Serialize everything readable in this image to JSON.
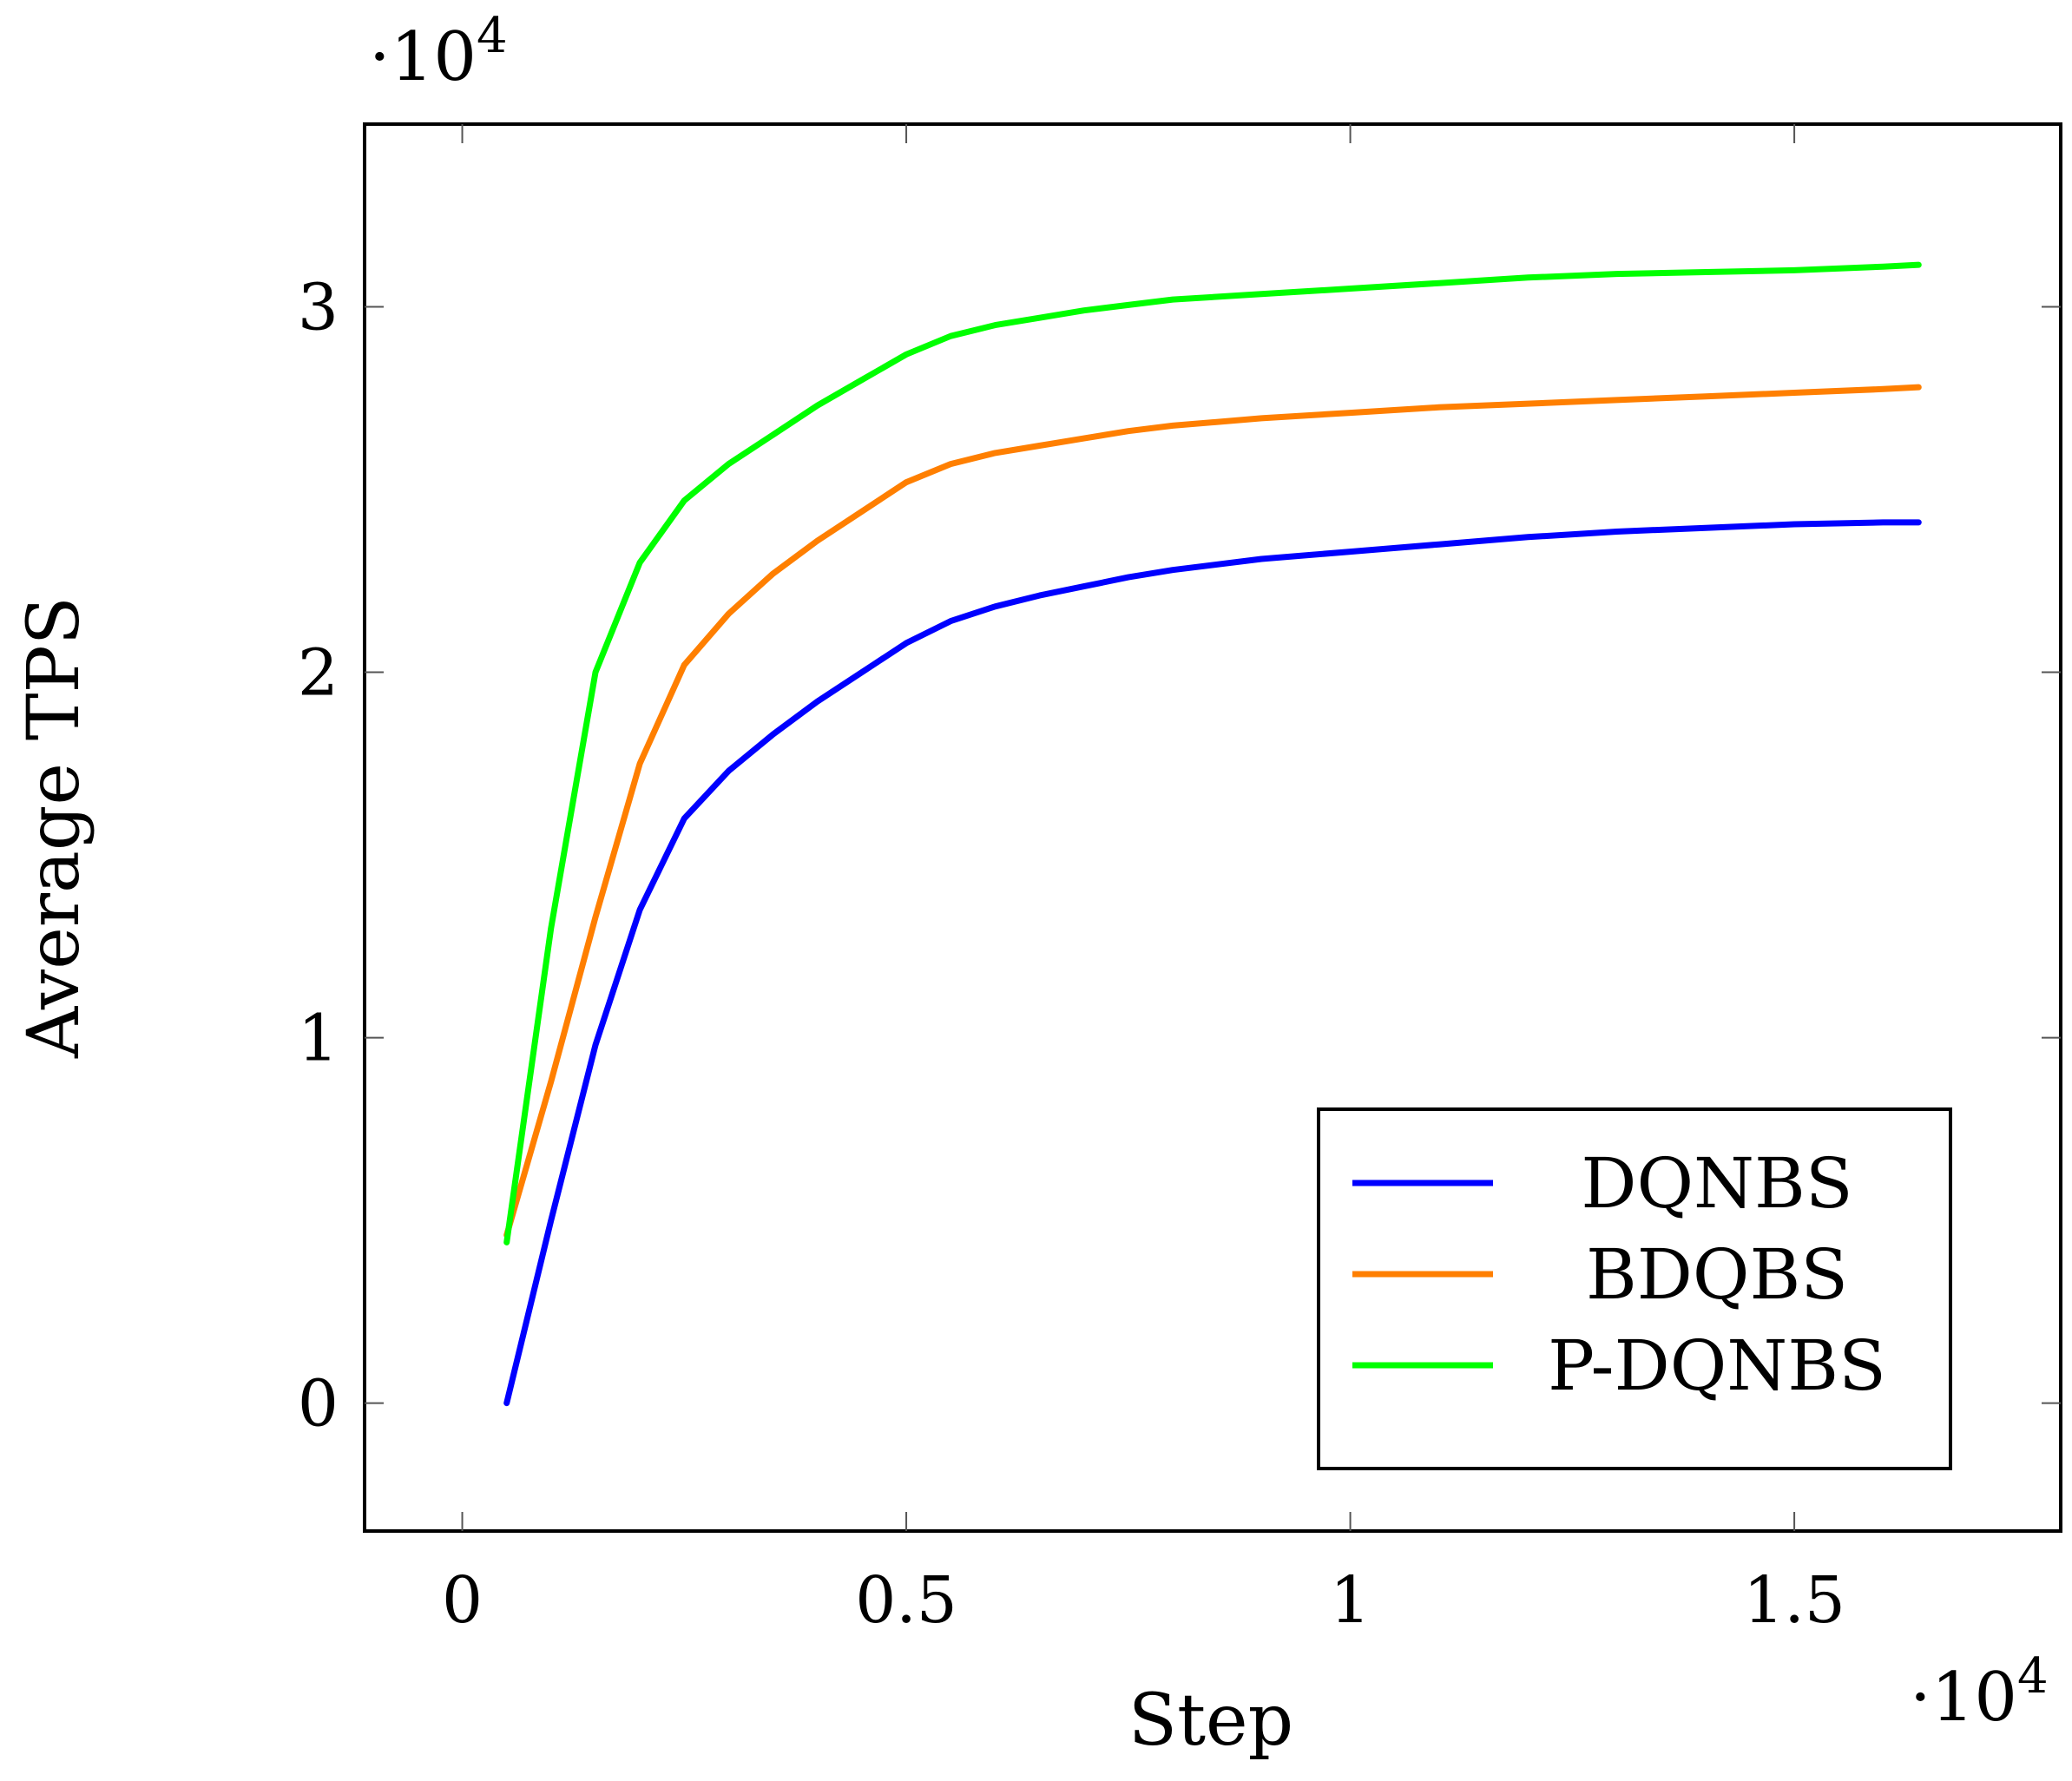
{
  "chart_data": {
    "type": "line",
    "title": "",
    "xlabel": "Step",
    "ylabel": "Average TPS",
    "x_multiplier": {
      "base": "·10",
      "exp": "4"
    },
    "y_multiplier": {
      "base": "·10",
      "exp": "4"
    },
    "xlim": [
      -1100,
      18000
    ],
    "ylim": [
      -3500,
      35000
    ],
    "x_ticks": [
      {
        "v": 0,
        "label": "0"
      },
      {
        "v": 5000,
        "label": "0.5"
      },
      {
        "v": 10000,
        "label": "1"
      },
      {
        "v": 15000,
        "label": "1.5"
      }
    ],
    "y_ticks": [
      {
        "v": 0,
        "label": "0"
      },
      {
        "v": 10000,
        "label": "1"
      },
      {
        "v": 20000,
        "label": "2"
      },
      {
        "v": 30000,
        "label": "3"
      }
    ],
    "grid": false,
    "legend_position": "bottom-right",
    "series": [
      {
        "name": "DQNBS",
        "color": "#0000ff",
        "x": [
          500,
          1000,
          1500,
          2000,
          2500,
          3000,
          3500,
          4000,
          4500,
          5000,
          5500,
          6000,
          6500,
          7000,
          7500,
          8000,
          9000,
          10000,
          11000,
          12000,
          13000,
          14000,
          15000,
          16000,
          16400
        ],
        "y": [
          0,
          5000,
          9800,
          13500,
          16000,
          17300,
          18300,
          19200,
          20000,
          20800,
          21400,
          21800,
          22100,
          22350,
          22600,
          22800,
          23100,
          23300,
          23500,
          23700,
          23850,
          23950,
          24050,
          24100,
          24100
        ]
      },
      {
        "name": "BDQBS",
        "color": "#ff7f00",
        "x": [
          500,
          1000,
          1500,
          2000,
          2500,
          3000,
          3500,
          4000,
          4500,
          5000,
          5500,
          6000,
          6500,
          7000,
          7500,
          8000,
          9000,
          10000,
          11000,
          12000,
          13000,
          14000,
          15000,
          16000,
          16400
        ],
        "y": [
          4600,
          8800,
          13300,
          17500,
          20200,
          21600,
          22700,
          23600,
          24400,
          25200,
          25700,
          26000,
          26200,
          26400,
          26600,
          26750,
          26950,
          27100,
          27250,
          27350,
          27450,
          27550,
          27650,
          27750,
          27800
        ]
      },
      {
        "name": "P-DQNBS",
        "color": "#00ff00",
        "x": [
          500,
          1000,
          1500,
          2000,
          2500,
          3000,
          3500,
          4000,
          4500,
          5000,
          5500,
          6000,
          6500,
          7000,
          7500,
          8000,
          9000,
          10000,
          11000,
          12000,
          13000,
          14000,
          15000,
          16000,
          16400
        ],
        "y": [
          4400,
          13000,
          20000,
          23000,
          24700,
          25700,
          26500,
          27300,
          28000,
          28700,
          29200,
          29500,
          29700,
          29900,
          30050,
          30200,
          30350,
          30500,
          30650,
          30800,
          30900,
          30950,
          31000,
          31100,
          31150
        ]
      }
    ]
  }
}
